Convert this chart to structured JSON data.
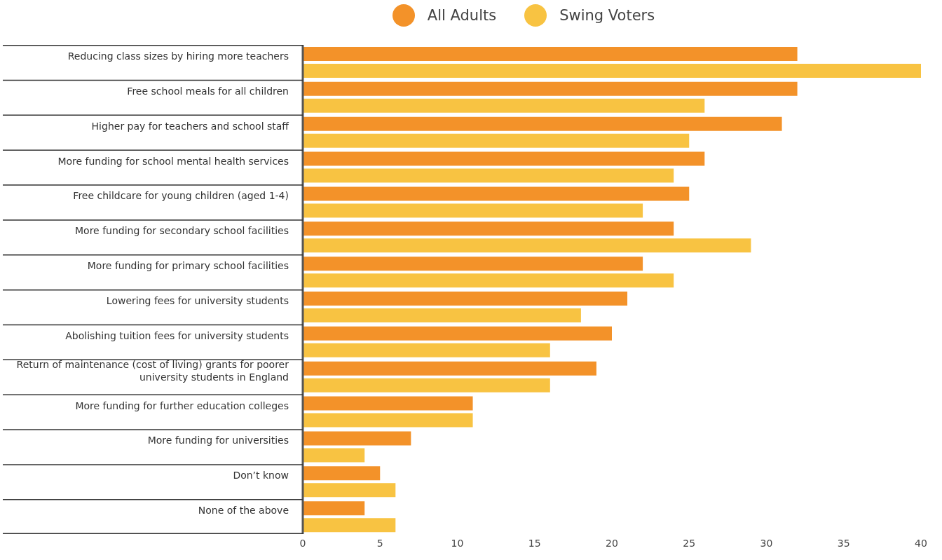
{
  "chart_data": {
    "type": "bar",
    "orientation": "horizontal",
    "categories": [
      "Reducing class sizes by hiring more teachers",
      "Free school meals for all children",
      "Higher pay for teachers and school staff",
      "More funding for school mental health services",
      "Free childcare for young children (aged 1-4)",
      "More funding for secondary school facilities",
      "More funding for primary school facilities",
      "Lowering fees for university students",
      "Abolishing tuition fees for university students",
      "Return of maintenance (cost of living) grants for poorer university students in England",
      "More funding for further education colleges",
      "More funding for universities",
      "Don’t know",
      "None of the above"
    ],
    "series": [
      {
        "name": "All Adults",
        "color": "#f39229",
        "values": [
          32,
          32,
          31,
          26,
          25,
          24,
          22,
          21,
          20,
          19,
          11,
          7,
          5,
          4
        ]
      },
      {
        "name": "Swing Voters",
        "color": "#f8c342",
        "values": [
          40,
          26,
          25,
          24,
          22,
          29,
          24,
          18,
          16,
          16,
          11,
          4,
          6,
          6
        ]
      }
    ],
    "xlim": [
      0,
      40
    ],
    "xticks": [
      0,
      5,
      10,
      15,
      20,
      25,
      30,
      35,
      40
    ],
    "legend": "top"
  }
}
